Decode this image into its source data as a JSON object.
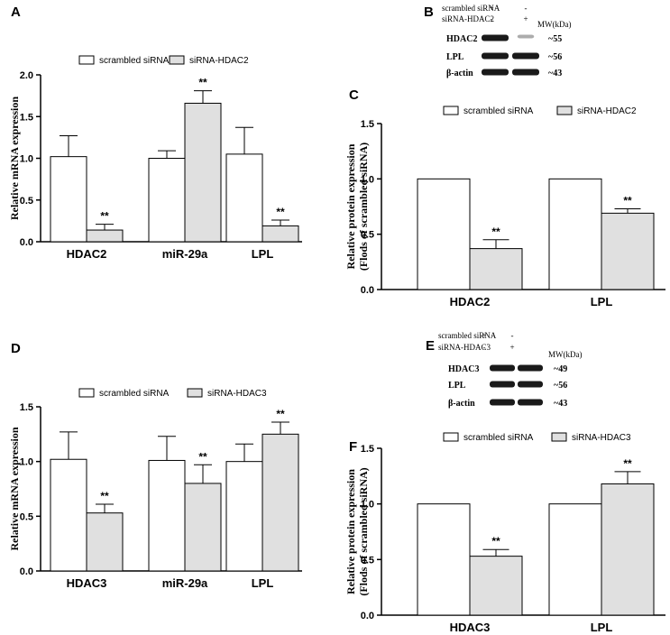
{
  "colors": {
    "bar_control": "#ffffff",
    "bar_treated": "#e0e0e0",
    "stroke": "#000000",
    "band": "#1a1a1a"
  },
  "chart_data": [
    {
      "panel": "A",
      "type": "bar",
      "legend": [
        "scrambled siRNA",
        "siRNA-HDAC2"
      ],
      "ylabel": "Relative mRNA expression",
      "ylim": [
        0,
        2.0
      ],
      "yticks": [
        "0.0",
        "0.5",
        "1.0",
        "1.5",
        "2.0"
      ],
      "categories": [
        "HDAC2",
        "miR-29a",
        "LPL"
      ],
      "series": [
        {
          "name": "scrambled siRNA",
          "values": [
            1.02,
            1.0,
            1.05
          ],
          "errors": [
            0.25,
            0.09,
            0.32
          ]
        },
        {
          "name": "siRNA-HDAC2",
          "values": [
            0.14,
            1.66,
            0.19
          ],
          "errors": [
            0.07,
            0.15,
            0.07
          ]
        }
      ],
      "significance": [
        [
          "",
          "**"
        ],
        [
          "",
          "**"
        ],
        [
          "",
          "**"
        ]
      ]
    },
    {
      "panel": "C",
      "type": "bar",
      "legend": [
        "scrambled siRNA",
        "siRNA-HDAC2"
      ],
      "ylabel": [
        "Relative protein expression",
        "(Flods of scrambled siRNA)"
      ],
      "ylim": [
        0,
        1.5
      ],
      "yticks": [
        "0.0",
        "0.5",
        "1.0",
        "1.5"
      ],
      "categories": [
        "HDAC2",
        "LPL"
      ],
      "series": [
        {
          "name": "scrambled siRNA",
          "values": [
            1.0,
            1.0
          ],
          "errors": [
            0,
            0
          ]
        },
        {
          "name": "siRNA-HDAC2",
          "values": [
            0.37,
            0.69
          ],
          "errors": [
            0.08,
            0.04
          ]
        }
      ],
      "significance": [
        [
          "",
          "**"
        ],
        [
          "",
          "**"
        ]
      ]
    },
    {
      "panel": "D",
      "type": "bar",
      "legend": [
        "scrambled siRNA",
        "siRNA-HDAC3"
      ],
      "ylabel": "Relative mRNA expression",
      "ylim": [
        0,
        1.5
      ],
      "yticks": [
        "0.0",
        "0.5",
        "1.0",
        "1.5"
      ],
      "categories": [
        "HDAC3",
        "miR-29a",
        "LPL"
      ],
      "series": [
        {
          "name": "scrambled siRNA",
          "values": [
            1.02,
            1.01,
            1.0
          ],
          "errors": [
            0.25,
            0.22,
            0.16
          ]
        },
        {
          "name": "siRNA-HDAC3",
          "values": [
            0.53,
            0.8,
            1.25
          ],
          "errors": [
            0.08,
            0.17,
            0.11
          ]
        }
      ],
      "significance": [
        [
          "",
          "**"
        ],
        [
          "",
          "**"
        ],
        [
          "",
          "**"
        ]
      ]
    },
    {
      "panel": "F",
      "type": "bar",
      "legend": [
        "scrambled siRNA",
        "siRNA-HDAC3"
      ],
      "ylabel": [
        "Relative protein expression",
        "(Flods of scrambled siRNA)"
      ],
      "ylim": [
        0,
        1.5
      ],
      "yticks": [
        "0.0",
        "0.5",
        "1.0",
        "1.5"
      ],
      "categories": [
        "HDAC3",
        "LPL"
      ],
      "series": [
        {
          "name": "scrambled siRNA",
          "values": [
            1.0,
            1.0
          ],
          "errors": [
            0,
            0
          ]
        },
        {
          "name": "siRNA-HDAC3",
          "values": [
            0.53,
            1.18
          ],
          "errors": [
            0.06,
            0.11
          ]
        }
      ],
      "significance": [
        [
          "",
          "**"
        ],
        [
          "",
          "**"
        ]
      ]
    }
  ],
  "blots": [
    {
      "panel": "B",
      "conditions": [
        {
          "label": "scrambled siRNA",
          "signs": [
            "+",
            "-"
          ]
        },
        {
          "label": "siRNA-HDAC2",
          "signs": [
            "-",
            "+"
          ]
        }
      ],
      "mw_header": "MW(kDa)",
      "rows": [
        {
          "label": "HDAC2",
          "mw": "~55",
          "intensity": [
            1.0,
            0.15
          ]
        },
        {
          "label": "LPL",
          "mw": "~56",
          "intensity": [
            1.0,
            1.0
          ]
        },
        {
          "label": "β-actin",
          "mw": "~43",
          "intensity": [
            1.0,
            1.0
          ]
        }
      ]
    },
    {
      "panel": "E",
      "conditions": [
        {
          "label": "scrambled siRNA",
          "signs": [
            "+",
            "-"
          ]
        },
        {
          "label": "siRNA-HDAC3",
          "signs": [
            "-",
            "+"
          ]
        }
      ],
      "mw_header": "MW(kDa)",
      "rows": [
        {
          "label": "HDAC3",
          "mw": "~49",
          "intensity": [
            1.0,
            1.0
          ]
        },
        {
          "label": "LPL",
          "mw": "~56",
          "intensity": [
            1.0,
            1.0
          ]
        },
        {
          "label": "β-actin",
          "mw": "~43",
          "intensity": [
            1.0,
            1.0
          ]
        }
      ]
    }
  ]
}
